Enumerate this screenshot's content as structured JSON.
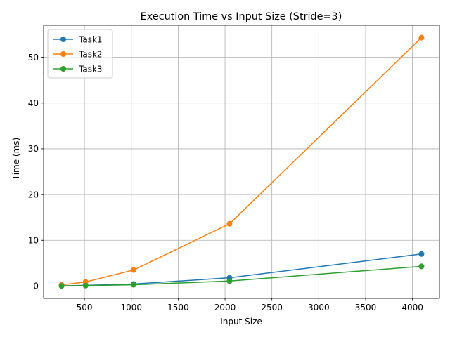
{
  "chart_data": {
    "type": "line",
    "title": "Execution Time vs Input Size (Stride=3)",
    "xlabel": "Input Size",
    "ylabel": "Time (ms)",
    "x": [
      256,
      512,
      1024,
      2048,
      4096
    ],
    "xlim": [
      64,
      4288
    ],
    "ylim": [
      -2.7,
      57.0
    ],
    "xticks": [
      500,
      1000,
      1500,
      2000,
      2500,
      3000,
      3500,
      4000
    ],
    "yticks": [
      0,
      10,
      20,
      30,
      40,
      50
    ],
    "grid": true,
    "legend_position": "top-left",
    "series": [
      {
        "name": "Task1",
        "color": "#1f77b4",
        "values": [
          0.05,
          0.15,
          0.45,
          1.8,
          7.0
        ]
      },
      {
        "name": "Task2",
        "color": "#ff7f0e",
        "values": [
          0.25,
          0.9,
          3.5,
          13.6,
          54.3
        ]
      },
      {
        "name": "Task3",
        "color": "#2ca02c",
        "values": [
          0.03,
          0.1,
          0.28,
          1.1,
          4.3
        ]
      }
    ]
  }
}
